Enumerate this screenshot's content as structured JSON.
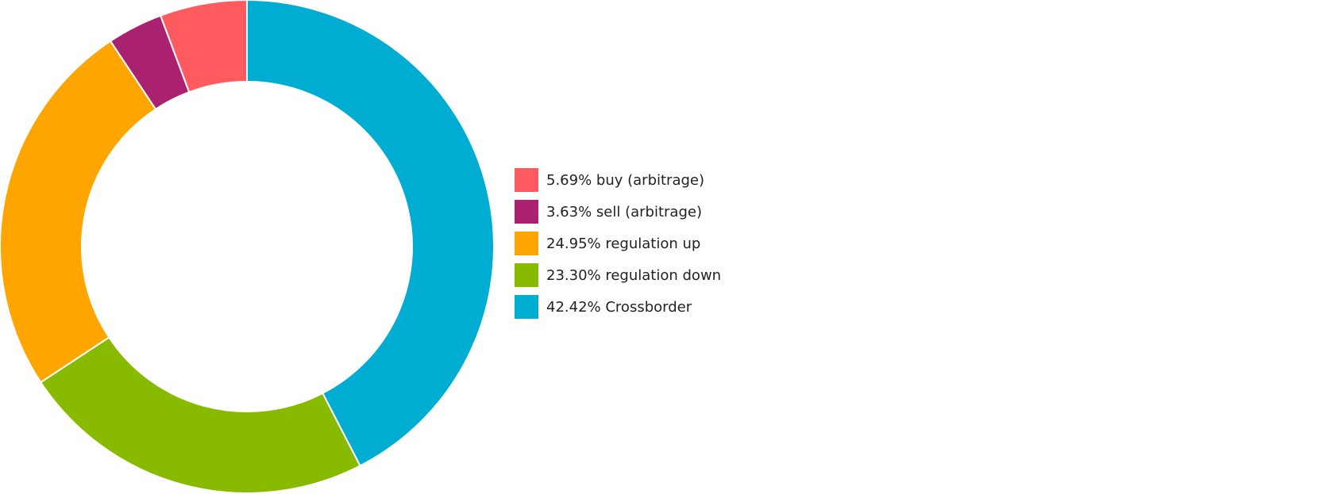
{
  "chart_data": {
    "type": "pie",
    "variant": "donut",
    "title": "",
    "legend_position": "right",
    "slices": [
      {
        "label": "5.69% buy (arbitrage)",
        "name": "buy (arbitrage)",
        "value": 5.69,
        "color": "#FF5A5F"
      },
      {
        "label": "3.63% sell (arbitrage)",
        "name": "sell (arbitrage)",
        "value": 3.63,
        "color": "#AA2170"
      },
      {
        "label": "24.95% regulation up",
        "name": "regulation up",
        "value": 24.95,
        "color": "#FFA500"
      },
      {
        "label": "23.30% regulation down",
        "name": "regulation down",
        "value": 23.3,
        "color": "#88BB00"
      },
      {
        "label": "42.42% Crossborder",
        "name": "Crossborder",
        "value": 42.42,
        "color": "#00ADD2"
      }
    ]
  }
}
